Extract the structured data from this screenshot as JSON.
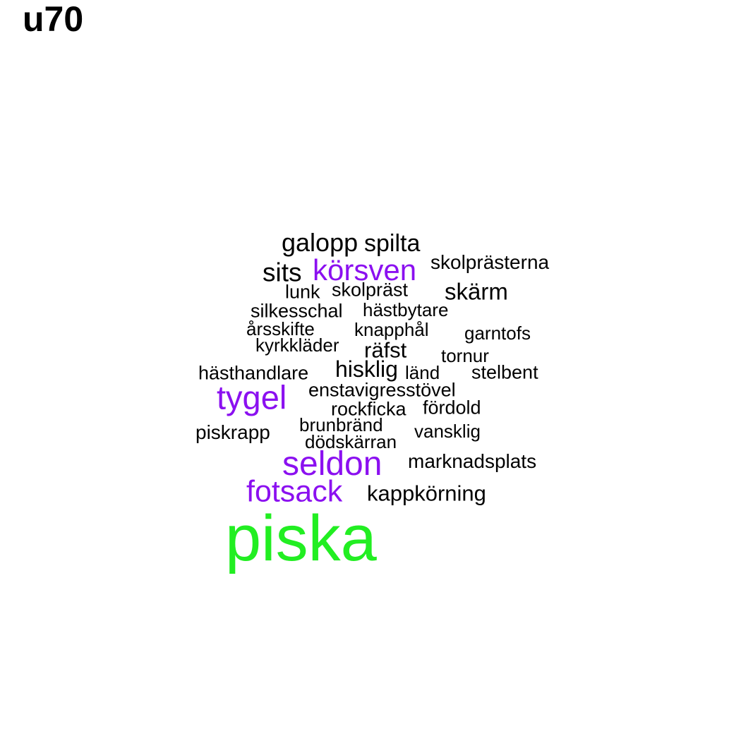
{
  "title": "u70",
  "colors": {
    "level1": "#000000",
    "level2": "#8b10f0",
    "level3": "#22ee22"
  },
  "words": [
    {
      "text": "galopp",
      "level": 1
    },
    {
      "text": "spilta",
      "level": 1
    },
    {
      "text": "skolprästerna",
      "level": 1
    },
    {
      "text": "sits",
      "level": 1
    },
    {
      "text": "körsven",
      "level": 2
    },
    {
      "text": "lunk",
      "level": 1
    },
    {
      "text": "skolpräst",
      "level": 1
    },
    {
      "text": "skärm",
      "level": 1
    },
    {
      "text": "silkesschal",
      "level": 1
    },
    {
      "text": "hästbytare",
      "level": 1
    },
    {
      "text": "årsskifte",
      "level": 1
    },
    {
      "text": "knapphål",
      "level": 1
    },
    {
      "text": "garntofs",
      "level": 1
    },
    {
      "text": "kyrkkläder",
      "level": 1
    },
    {
      "text": "räfst",
      "level": 1
    },
    {
      "text": "tornur",
      "level": 1
    },
    {
      "text": "hästhandlare",
      "level": 1
    },
    {
      "text": "hisklig",
      "level": 1
    },
    {
      "text": "länd",
      "level": 1
    },
    {
      "text": "stelbent",
      "level": 1
    },
    {
      "text": "tygel",
      "level": 2
    },
    {
      "text": "enstavigresstövel",
      "level": 1
    },
    {
      "text": "rockficka",
      "level": 1
    },
    {
      "text": "fördold",
      "level": 1
    },
    {
      "text": "brunbränd",
      "level": 1
    },
    {
      "text": "piskrapp",
      "level": 1
    },
    {
      "text": "vansklig",
      "level": 1
    },
    {
      "text": "dödskärran",
      "level": 1
    },
    {
      "text": "seldon",
      "level": 2
    },
    {
      "text": "marknadsplats",
      "level": 1
    },
    {
      "text": "fotsack",
      "level": 2
    },
    {
      "text": "kappkörning",
      "level": 1
    },
    {
      "text": "piska",
      "level": 3
    }
  ]
}
